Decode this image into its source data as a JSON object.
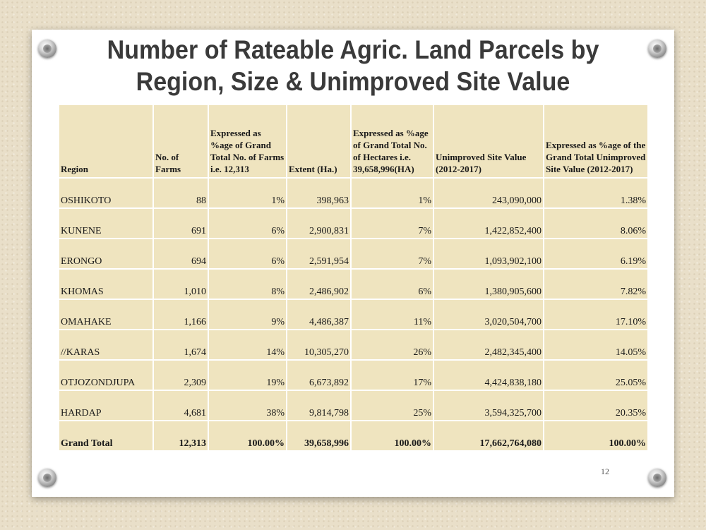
{
  "slide": {
    "title_line1": "Number of Rateable Agric. Land Parcels by",
    "title_line2": "Region, Size & Unimproved Site Value",
    "page_number": "12"
  },
  "table": {
    "headers": [
      "Region",
      "No. of Farms",
      "Expressed as %age of Grand Total No. of Farms i.e. 12,313",
      "Extent (Ha.)",
      "Expressed as %age of Grand Total No. of Hectares i.e. 39,658,996(HA)",
      "Unimproved Site Value (2012-2017)",
      "Expressed as %age of the Grand Total Unimproved Site Value (2012-2017)"
    ],
    "rows": [
      [
        "OSHIKOTO",
        "88",
        "1%",
        "398,963",
        "1%",
        "243,090,000",
        "1.38%"
      ],
      [
        "KUNENE",
        "691",
        "6%",
        "2,900,831",
        "7%",
        "1,422,852,400",
        "8.06%"
      ],
      [
        "ERONGO",
        "694",
        "6%",
        "2,591,954",
        "7%",
        "1,093,902,100",
        "6.19%"
      ],
      [
        "KHOMAS",
        "1,010",
        "8%",
        "2,486,902",
        "6%",
        "1,380,905,600",
        "7.82%"
      ],
      [
        "OMAHAKE",
        "1,166",
        "9%",
        "4,486,387",
        "11%",
        "3,020,504,700",
        "17.10%"
      ],
      [
        "//KARAS",
        "1,674",
        "14%",
        "10,305,270",
        "26%",
        "2,482,345,400",
        "14.05%"
      ],
      [
        "OTJOZONDJUPA",
        "2,309",
        "19%",
        "6,673,892",
        "17%",
        "4,424,838,180",
        "25.05%"
      ],
      [
        "HARDAP",
        "4,681",
        "38%",
        "9,814,798",
        "25%",
        "3,594,325,700",
        "20.35%"
      ]
    ],
    "total": [
      "Grand Total",
      "12,313",
      "100.00%",
      "39,658,996",
      "100.00%",
      "17,662,764,080",
      "100.00%"
    ]
  }
}
